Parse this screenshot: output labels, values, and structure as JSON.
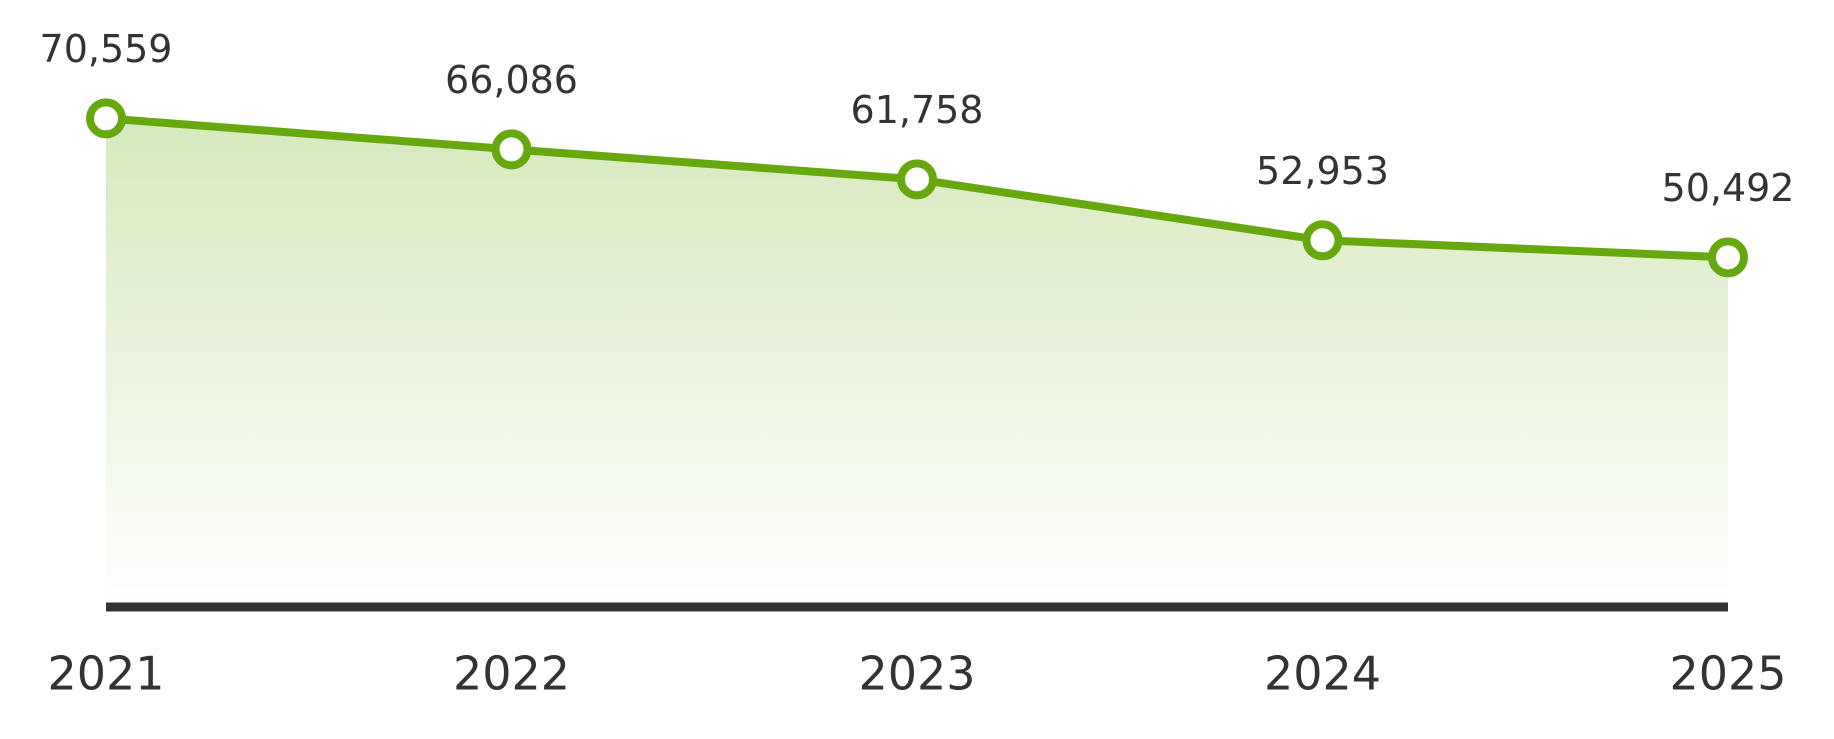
{
  "chart_data": {
    "type": "area",
    "categories": [
      "2021",
      "2022",
      "2023",
      "2024",
      "2025"
    ],
    "values": [
      70559,
      66086,
      61758,
      52953,
      50492
    ],
    "value_labels": [
      "70,559",
      "66,086",
      "61,758",
      "52,953",
      "50,492"
    ],
    "color": "#67a80e",
    "ylim": [
      0,
      80000
    ]
  }
}
